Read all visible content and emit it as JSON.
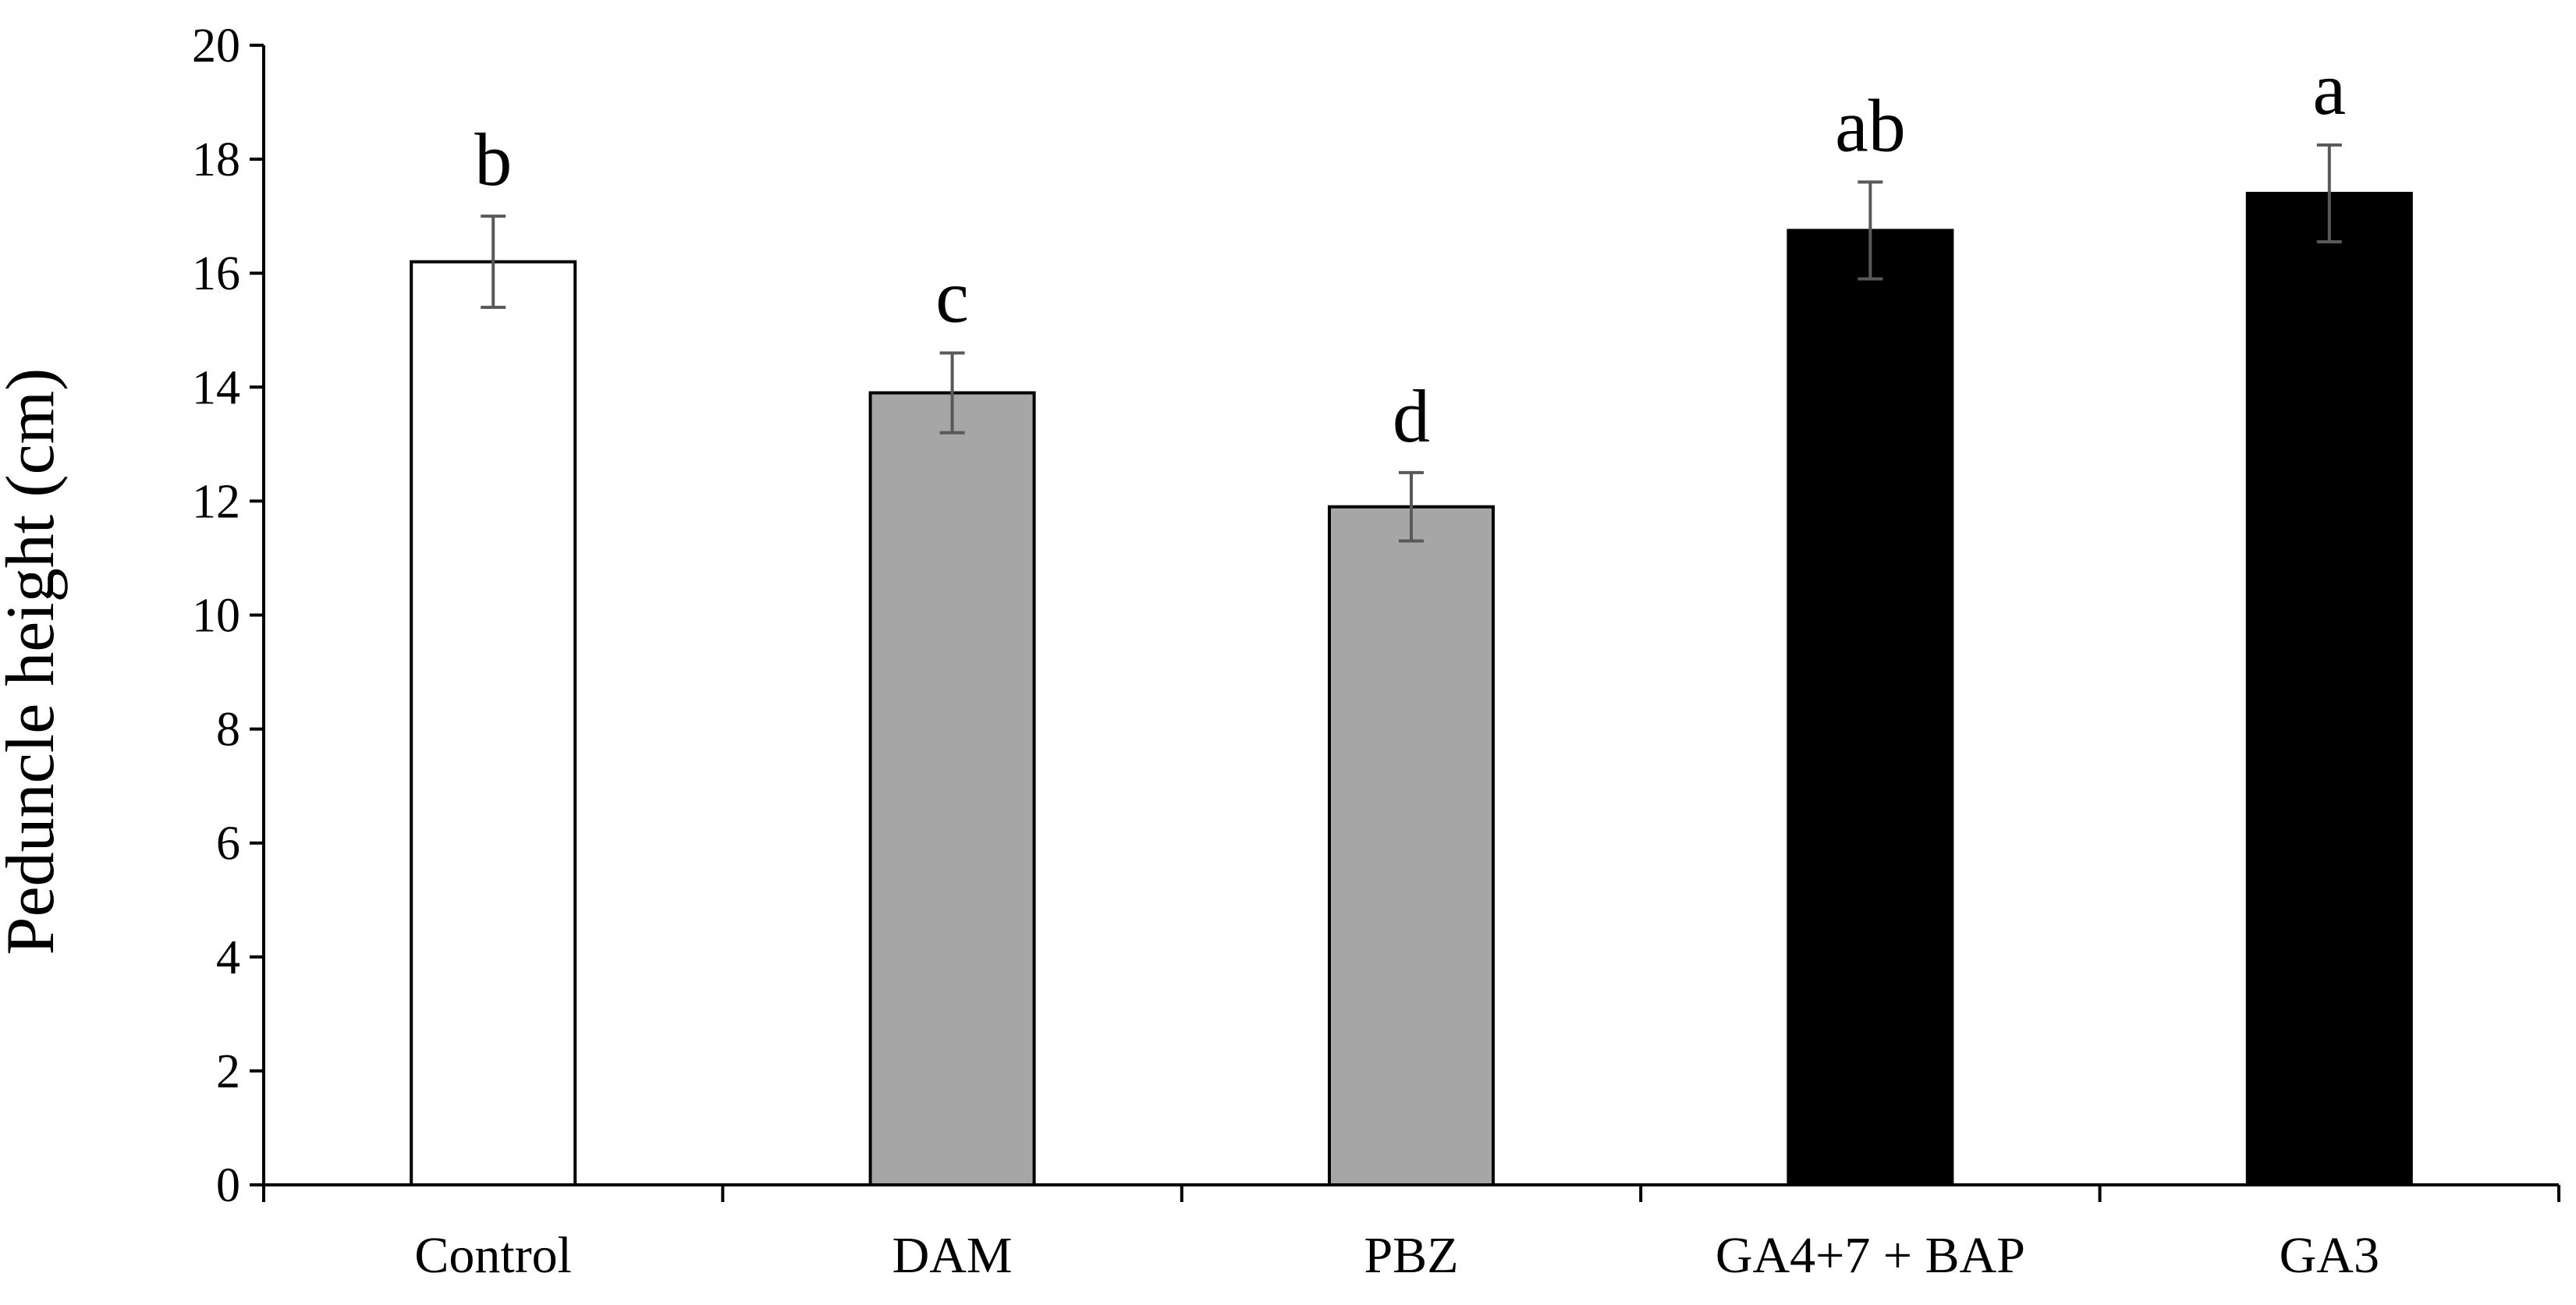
{
  "chart_data": {
    "type": "bar",
    "title": "",
    "xlabel": "",
    "ylabel": "Peduncle height (cm)",
    "ylim": [
      0,
      20
    ],
    "yticks": [
      0,
      2,
      4,
      6,
      8,
      10,
      12,
      14,
      16,
      18,
      20
    ],
    "grid": false,
    "legend": "none",
    "categories": [
      "Control",
      "DAM",
      "PBZ",
      "GA4+7 + BAP",
      "GA3"
    ],
    "values": [
      16.2,
      13.9,
      11.9,
      16.75,
      17.4
    ],
    "errors": [
      0.8,
      0.7,
      0.6,
      0.85,
      0.85
    ],
    "significance_letters": [
      "b",
      "c",
      "d",
      "ab",
      "a"
    ],
    "bar_colors": [
      "#ffffff",
      "#a6a6a6",
      "#a6a6a6",
      "#000000",
      "#000000"
    ],
    "bar_edge_color": "#000000",
    "error_bar_color": "#595959"
  }
}
